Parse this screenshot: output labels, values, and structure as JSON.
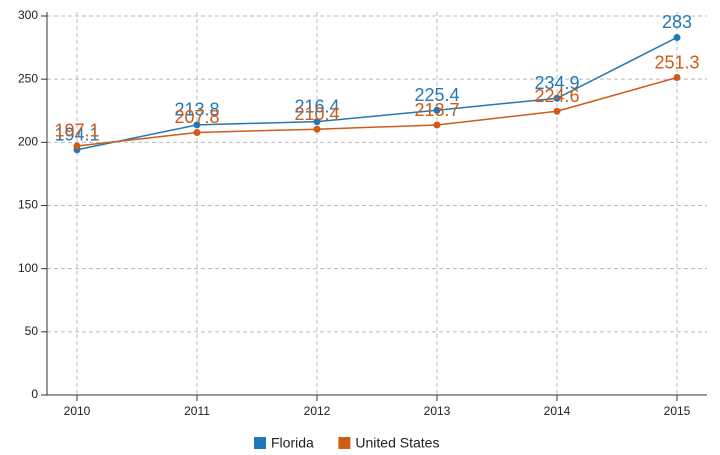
{
  "chart_data": {
    "type": "line",
    "categories": [
      "2010",
      "2011",
      "2012",
      "2013",
      "2014",
      "2015"
    ],
    "series": [
      {
        "name": "Florida",
        "color": "#2477b5",
        "values": [
          194.1,
          213.8,
          216.4,
          225.4,
          234.9,
          283
        ]
      },
      {
        "name": "United States",
        "color": "#cc5c17",
        "values": [
          197.1,
          207.8,
          210.4,
          213.7,
          224.6,
          251.3
        ]
      }
    ],
    "ylim": [
      0,
      300
    ],
    "yticks": [
      0,
      50,
      100,
      150,
      200,
      250,
      300
    ],
    "grid": true,
    "legend": "bottom"
  }
}
